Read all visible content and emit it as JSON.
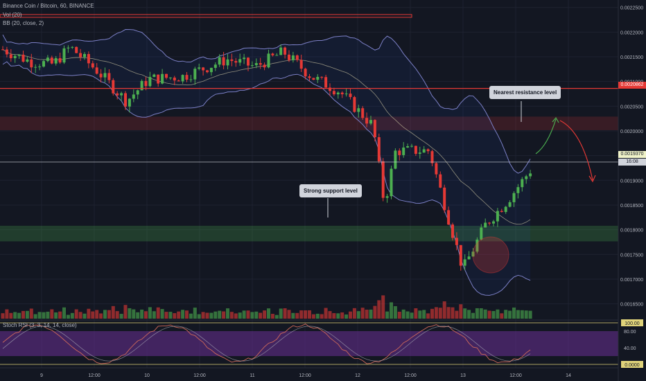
{
  "legend": {
    "main": "Binance Coin / Bitcoin, 60, BINANCE",
    "volume": "Vol (20)",
    "bb": "BB (20, close, 2)",
    "stoch": "Stoch RSI (3, 3, 14, 14, close)"
  },
  "annotations": {
    "resistance_label": "Nearest resistance level",
    "support_label": "Strong support level"
  },
  "colors": {
    "background": "#131722",
    "up": "#4caf50",
    "down": "#e53935",
    "bb_band": "#7c80c7",
    "bb_basis": "#c9c2a0",
    "resistance_zone": "#e53935",
    "support_zone": "#4caf50",
    "stoch_k": "#d06a5a",
    "stoch_d": "#b2b5be",
    "stoch_fill": "#6a2f93"
  },
  "chart_data": {
    "type": "candlestick",
    "price_axis": {
      "ticks": [
        0.00225,
        0.0022,
        0.00215,
        0.0021,
        0.00205,
        0.002,
        0.00195,
        0.0019,
        0.00185,
        0.0018,
        0.00175,
        0.0017,
        0.00165
      ],
      "tick_labels": [
        "0.0022500",
        "0.0022000",
        "0.0021500",
        "0.0021000",
        "0.0020500",
        "0.0020000",
        "0.0019500",
        "0.0019000",
        "0.0018500",
        "0.0018000",
        "0.0017500",
        "0.0017000",
        "0.0016500"
      ],
      "range": [
        0.00162,
        0.002265
      ]
    },
    "time_axis": {
      "labels": [
        "9",
        "12:00",
        "10",
        "12:00",
        "11",
        "12:00",
        "12",
        "12:00",
        "13",
        "12:00",
        "14"
      ]
    },
    "horizontal_lines": [
      {
        "price": 0.002086,
        "label": "0.0020862"
      }
    ],
    "last_price": {
      "price": 0.001937,
      "label": "0.0019370",
      "countdown": "16:08"
    },
    "zones": [
      {
        "name": "resistance",
        "from": 0.0020015,
        "to": 0.002029
      },
      {
        "name": "support",
        "from": 0.0017765,
        "to": 0.001808
      }
    ],
    "stoch_axis": {
      "ticks": [
        80,
        40
      ],
      "tick_labels": [
        "80.00",
        "40.00"
      ],
      "upper_label": "100.00",
      "lower_label": "0.0000"
    }
  }
}
